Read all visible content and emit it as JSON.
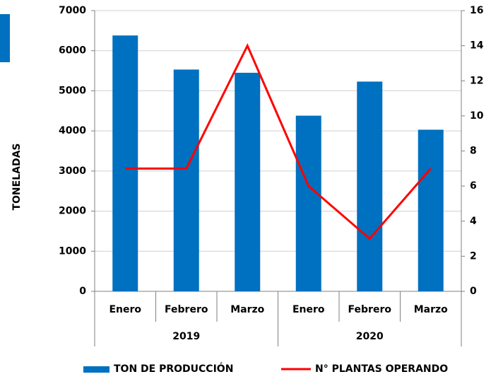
{
  "chart_data": {
    "type": "bar",
    "ylabel": "TONELADAS",
    "categories": [
      "Enero",
      "Febrero",
      "Marzo",
      "Enero",
      "Febrero",
      "Marzo"
    ],
    "category_groups": [
      "2019",
      "2020"
    ],
    "series": [
      {
        "name": "TON DE PRODUCCIÓN",
        "type": "bar",
        "color": "#0070c0",
        "values": [
          6380,
          5530,
          5450,
          4380,
          5230,
          4030
        ]
      },
      {
        "name": "N° PLANTAS OPERANDO",
        "type": "line",
        "color": "#ff0000",
        "axis": "y2",
        "values": [
          7,
          7,
          14,
          6,
          3,
          7
        ]
      }
    ],
    "ylim": [
      0,
      7000
    ],
    "yticks": [
      0,
      1000,
      2000,
      3000,
      4000,
      5000,
      6000,
      7000
    ],
    "y2lim": [
      0,
      16
    ],
    "y2ticks": [
      0,
      2,
      4,
      6,
      8,
      10,
      12,
      14,
      16
    ],
    "grid": true
  }
}
